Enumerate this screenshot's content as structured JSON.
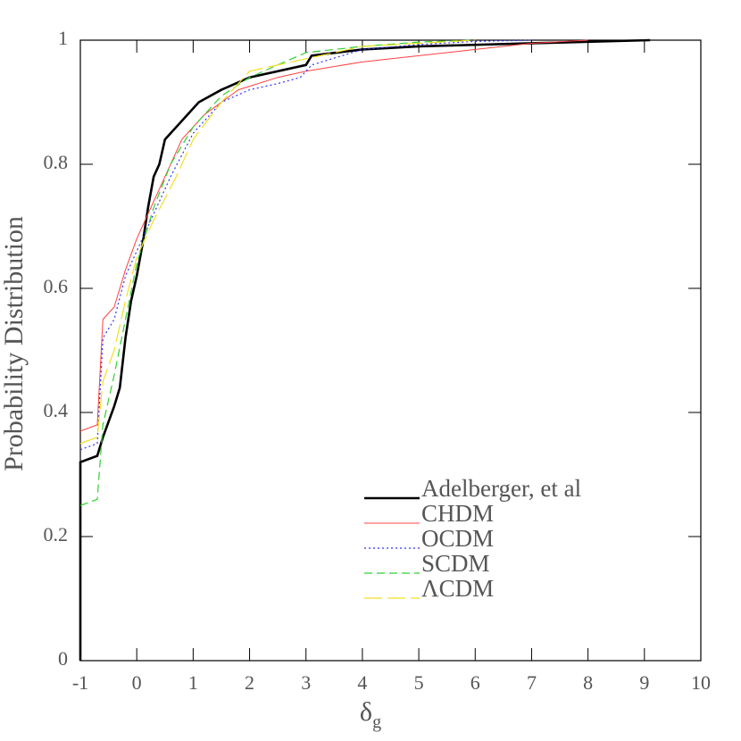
{
  "chart_data": {
    "type": "line",
    "xlabel": "δ",
    "xlabel_subscript": "g",
    "ylabel": "Probability Distribution",
    "xlim": [
      -1,
      10
    ],
    "xticks": [
      -1,
      0,
      1,
      2,
      3,
      4,
      5,
      6,
      7,
      8,
      9,
      10
    ],
    "ylim": [
      0,
      1
    ],
    "yticks": [
      0,
      0.2,
      0.4,
      0.6,
      0.8,
      1
    ],
    "legend": "lower right",
    "series": [
      {
        "name": "Adelberger, et al",
        "color": "#000000",
        "x": [
          -1,
          -1,
          -0.7,
          -0.6,
          -0.4,
          -0.3,
          -0.2,
          -0.1,
          0,
          0.1,
          0.2,
          0.3,
          0.4,
          0.5,
          0.6,
          0.8,
          1.1,
          1.5,
          2,
          3,
          3.1,
          4,
          5,
          7,
          9.1
        ],
        "values": [
          0,
          0.32,
          0.33,
          0.36,
          0.41,
          0.44,
          0.52,
          0.58,
          0.62,
          0.67,
          0.73,
          0.78,
          0.8,
          0.84,
          0.85,
          0.87,
          0.9,
          0.92,
          0.94,
          0.96,
          0.975,
          0.985,
          0.99,
          0.995,
          1
        ]
      },
      {
        "name": "CHDM",
        "color": "#ff4040",
        "x": [
          -1,
          -0.7,
          -0.6,
          -0.4,
          -0.2,
          0,
          0.2,
          0.5,
          0.8,
          1.2,
          1.8,
          2.5,
          3,
          4,
          5,
          6,
          7,
          8
        ],
        "values": [
          0.37,
          0.38,
          0.55,
          0.57,
          0.63,
          0.68,
          0.72,
          0.78,
          0.84,
          0.88,
          0.92,
          0.94,
          0.95,
          0.965,
          0.975,
          0.985,
          0.995,
          1
        ]
      },
      {
        "name": "OCDM",
        "color": "#3030ff",
        "x": [
          -1,
          -0.7,
          -0.6,
          -0.4,
          -0.2,
          0,
          0.3,
          0.6,
          1,
          1.5,
          2,
          2.5,
          2.9,
          3.1,
          4,
          5,
          6,
          7
        ],
        "values": [
          0.34,
          0.35,
          0.52,
          0.55,
          0.62,
          0.66,
          0.72,
          0.78,
          0.85,
          0.9,
          0.92,
          0.93,
          0.94,
          0.96,
          0.985,
          0.993,
          0.998,
          1
        ]
      },
      {
        "name": "SCDM",
        "color": "#30d030",
        "x": [
          -1,
          -0.7,
          -0.6,
          -0.4,
          -0.2,
          0,
          0.3,
          0.6,
          1,
          1.5,
          2,
          3,
          4,
          5,
          6
        ],
        "values": [
          0.25,
          0.26,
          0.38,
          0.46,
          0.55,
          0.64,
          0.73,
          0.8,
          0.86,
          0.91,
          0.94,
          0.98,
          0.99,
          0.997,
          1
        ]
      },
      {
        "name": "ΛCDM",
        "color": "#f0e020",
        "x": [
          -1,
          -0.7,
          -0.6,
          -0.4,
          -0.2,
          0,
          0.3,
          0.7,
          1,
          1.5,
          2,
          3,
          4,
          5,
          6
        ],
        "values": [
          0.35,
          0.36,
          0.45,
          0.5,
          0.58,
          0.65,
          0.71,
          0.78,
          0.84,
          0.9,
          0.95,
          0.97,
          0.99,
          0.995,
          1
        ]
      }
    ]
  }
}
